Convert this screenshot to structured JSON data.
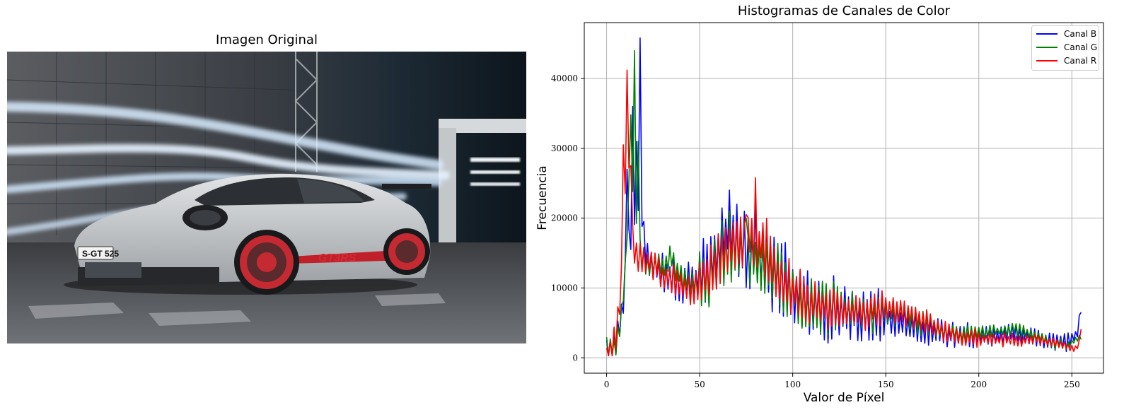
{
  "left_panel": {
    "title": "Imagen Original",
    "plate_text": "S-GT 525",
    "badge_text": "GT3RS"
  },
  "chart_data": {
    "type": "line",
    "title": "Histogramas de Canales de Color",
    "xlabel": "Valor de Píxel",
    "ylabel": "Frecuencia",
    "xlim": [
      -12,
      267
    ],
    "ylim": [
      -2200,
      48000
    ],
    "xticks": [
      0,
      50,
      100,
      150,
      200,
      250
    ],
    "yticks": [
      0,
      10000,
      20000,
      30000,
      40000
    ],
    "grid": true,
    "legend_position": "top-right",
    "series": [
      {
        "name": "Canal B",
        "color": "#0000ff",
        "anchors": [
          [
            0,
            1500
          ],
          [
            3,
            1200
          ],
          [
            6,
            3000
          ],
          [
            8,
            6000
          ],
          [
            10,
            11000
          ],
          [
            12,
            17000
          ],
          [
            14,
            20000
          ],
          [
            16,
            22000
          ],
          [
            18,
            24000
          ],
          [
            20,
            17000
          ],
          [
            22,
            14000
          ],
          [
            25,
            13000
          ],
          [
            30,
            12000
          ],
          [
            35,
            11500
          ],
          [
            40,
            10500
          ],
          [
            45,
            11500
          ],
          [
            50,
            11000
          ],
          [
            55,
            13000
          ],
          [
            60,
            15000
          ],
          [
            65,
            18000
          ],
          [
            70,
            16000
          ],
          [
            75,
            14500
          ],
          [
            80,
            15000
          ],
          [
            85,
            13500
          ],
          [
            90,
            12000
          ],
          [
            95,
            11000
          ],
          [
            100,
            10000
          ],
          [
            105,
            9000
          ],
          [
            110,
            8000
          ],
          [
            120,
            7000
          ],
          [
            130,
            6200
          ],
          [
            140,
            5800
          ],
          [
            145,
            6500
          ],
          [
            150,
            5800
          ],
          [
            160,
            5000
          ],
          [
            170,
            4200
          ],
          [
            180,
            3500
          ],
          [
            190,
            3000
          ],
          [
            200,
            3200
          ],
          [
            210,
            3000
          ],
          [
            220,
            3500
          ],
          [
            230,
            2800
          ],
          [
            240,
            2300
          ],
          [
            246,
            2200
          ],
          [
            250,
            2800
          ],
          [
            253,
            3300
          ],
          [
            255,
            7300
          ]
        ],
        "spikes": [
          [
            11,
            27000
          ],
          [
            14,
            36000
          ],
          [
            16,
            31000
          ],
          [
            18,
            45800
          ],
          [
            66,
            24000
          ],
          [
            70,
            22000
          ],
          [
            74,
            21000
          ],
          [
            80,
            22000
          ]
        ],
        "jitter": [
          3000,
          3000,
          6000,
          6000,
          5000,
          4000,
          2500,
          2000,
          1500,
          1500,
          800
        ]
      },
      {
        "name": "Canal G",
        "color": "#008000",
        "anchors": [
          [
            0,
            2000
          ],
          [
            3,
            900
          ],
          [
            6,
            2800
          ],
          [
            8,
            6000
          ],
          [
            10,
            13000
          ],
          [
            12,
            24000
          ],
          [
            14,
            22000
          ],
          [
            16,
            18000
          ],
          [
            18,
            15000
          ],
          [
            20,
            14000
          ],
          [
            25,
            13000
          ],
          [
            30,
            13000
          ],
          [
            35,
            14000
          ],
          [
            40,
            11500
          ],
          [
            45,
            10500
          ],
          [
            50,
            10500
          ],
          [
            55,
            12000
          ],
          [
            60,
            14000
          ],
          [
            65,
            16000
          ],
          [
            70,
            15500
          ],
          [
            75,
            15000
          ],
          [
            80,
            14500
          ],
          [
            85,
            13000
          ],
          [
            90,
            12000
          ],
          [
            95,
            11000
          ],
          [
            100,
            9500
          ],
          [
            105,
            8000
          ],
          [
            110,
            7500
          ],
          [
            120,
            7000
          ],
          [
            130,
            6800
          ],
          [
            140,
            6200
          ],
          [
            150,
            6800
          ],
          [
            160,
            6000
          ],
          [
            170,
            5000
          ],
          [
            180,
            3800
          ],
          [
            190,
            3500
          ],
          [
            200,
            3600
          ],
          [
            210,
            3800
          ],
          [
            220,
            4000
          ],
          [
            230,
            3300
          ],
          [
            240,
            2000
          ],
          [
            248,
            1900
          ],
          [
            252,
            2500
          ],
          [
            255,
            3000
          ]
        ],
        "spikes": [
          [
            13,
            34800
          ],
          [
            15,
            44000
          ],
          [
            17,
            31000
          ],
          [
            34,
            16000
          ],
          [
            66,
            21000
          ],
          [
            75,
            20000
          ]
        ],
        "jitter": [
          2000,
          2000,
          5000,
          5000,
          4000,
          3000,
          2000,
          1200,
          1000,
          800,
          600
        ]
      },
      {
        "name": "Canal R",
        "color": "#ff0000",
        "anchors": [
          [
            0,
            500
          ],
          [
            3,
            1000
          ],
          [
            5,
            3000
          ],
          [
            7,
            8000
          ],
          [
            9,
            15000
          ],
          [
            10,
            22000
          ],
          [
            12,
            25000
          ],
          [
            14,
            17000
          ],
          [
            16,
            14000
          ],
          [
            20,
            14000
          ],
          [
            25,
            13500
          ],
          [
            30,
            12000
          ],
          [
            35,
            11500
          ],
          [
            40,
            10500
          ],
          [
            45,
            10000
          ],
          [
            50,
            10500
          ],
          [
            55,
            12000
          ],
          [
            60,
            14000
          ],
          [
            65,
            15500
          ],
          [
            70,
            16500
          ],
          [
            75,
            17000
          ],
          [
            80,
            17000
          ],
          [
            85,
            15000
          ],
          [
            90,
            12500
          ],
          [
            95,
            11000
          ],
          [
            100,
            10000
          ],
          [
            105,
            9000
          ],
          [
            110,
            8000
          ],
          [
            120,
            7000
          ],
          [
            130,
            6500
          ],
          [
            140,
            6500
          ],
          [
            150,
            7200
          ],
          [
            160,
            6500
          ],
          [
            170,
            5500
          ],
          [
            180,
            3900
          ],
          [
            190,
            3200
          ],
          [
            200,
            2800
          ],
          [
            210,
            2600
          ],
          [
            220,
            2500
          ],
          [
            230,
            2700
          ],
          [
            240,
            2200
          ],
          [
            248,
            1600
          ],
          [
            252,
            1200
          ],
          [
            254,
            2000
          ],
          [
            255,
            4400
          ]
        ],
        "spikes": [
          [
            9,
            30500
          ],
          [
            11,
            41200
          ],
          [
            13,
            27500
          ],
          [
            75,
            20500
          ],
          [
            80,
            25800
          ],
          [
            86,
            20000
          ]
        ],
        "jitter": [
          2500,
          2500,
          4000,
          4000,
          3500,
          3000,
          2000,
          1500,
          1000,
          700,
          600
        ]
      }
    ]
  }
}
